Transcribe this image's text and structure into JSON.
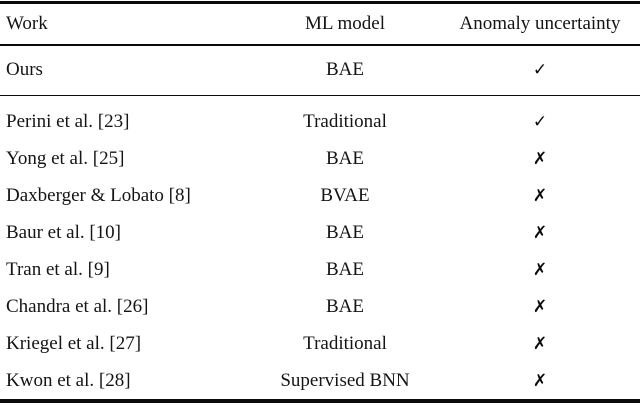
{
  "table": {
    "columns": [
      "Work",
      "ML model",
      "Anomaly uncertainty"
    ],
    "rows": [
      {
        "work": "Ours",
        "model": "BAE",
        "mark": "✓"
      },
      {
        "work": "Perini et al. [23]",
        "model": "Traditional",
        "mark": "✓"
      },
      {
        "work": "Yong et al. [25]",
        "model": "BAE",
        "mark": "✗"
      },
      {
        "work": "Daxberger & Lobato [8]",
        "model": "BVAE",
        "mark": "✗"
      },
      {
        "work": "Baur et al. [10]",
        "model": "BAE",
        "mark": "✗"
      },
      {
        "work": "Tran et al. [9]",
        "model": "BAE",
        "mark": "✗"
      },
      {
        "work": "Chandra et al. [26]",
        "model": "BAE",
        "mark": "✗"
      },
      {
        "work": "Kriegel et al. [27]",
        "model": "Traditional",
        "mark": "✗"
      },
      {
        "work": "Kwon et al. [28]",
        "model": "Supervised BNN",
        "mark": "✗"
      }
    ],
    "colors": {
      "text": "#141414",
      "rule": "#0a0a0a",
      "background": "#ffffff"
    }
  }
}
